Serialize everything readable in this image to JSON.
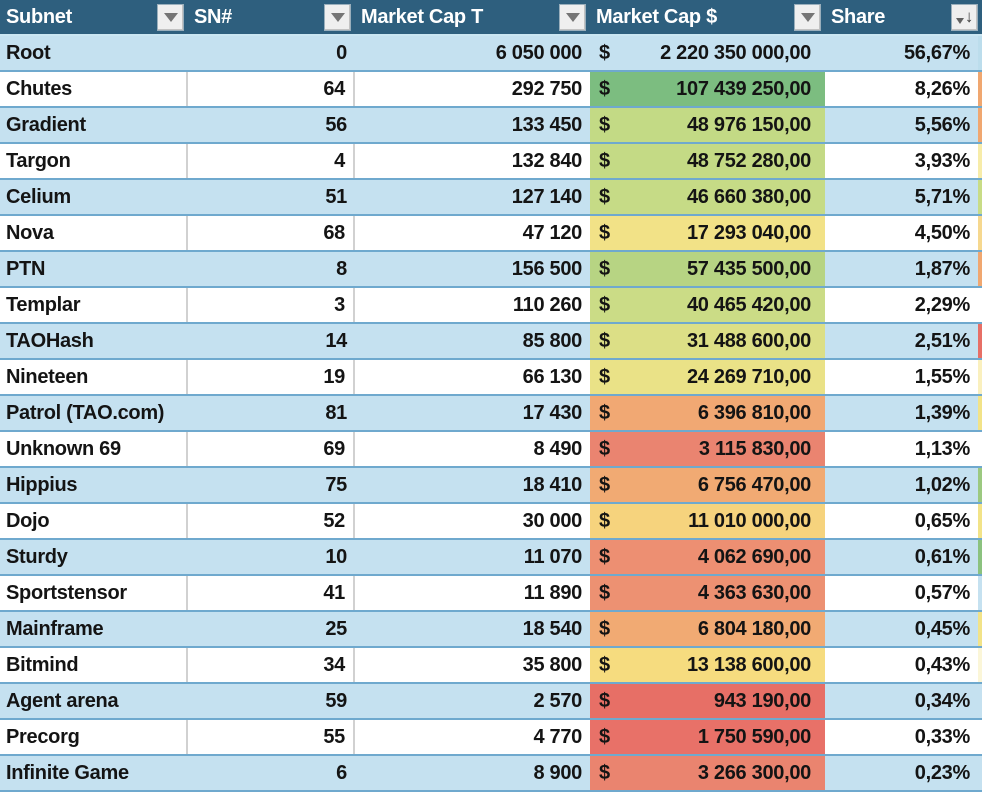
{
  "table": {
    "columns": [
      {
        "label": "Subnet",
        "icon": "filter-dropdown-icon"
      },
      {
        "label": "SN#",
        "icon": "filter-dropdown-icon"
      },
      {
        "label": "Market Cap T",
        "icon": "filter-dropdown-icon"
      },
      {
        "label": "Market Cap $",
        "icon": "filter-dropdown-icon"
      },
      {
        "label": "Share",
        "icon": "sort-desc-filter-icon"
      }
    ],
    "rows": [
      {
        "subnet": "Root",
        "sn": "0",
        "market_cap_t": "6 050 000",
        "currency": "$",
        "market_cap_usd": "2 220 350 000,00",
        "share": "56,67%",
        "usd_cell_color": null,
        "edge_color": "#BCDDEC"
      },
      {
        "subnet": "Chutes",
        "sn": "64",
        "market_cap_t": "292 750",
        "currency": "$",
        "market_cap_usd": "107 439 250,00",
        "share": "8,26%",
        "usd_cell_color": "#7CBD80",
        "edge_color": "#F0A770"
      },
      {
        "subnet": "Gradient",
        "sn": "56",
        "market_cap_t": "133 450",
        "currency": "$",
        "market_cap_usd": "48 976 150,00",
        "share": "5,56%",
        "usd_cell_color": "#C3DA85",
        "edge_color": "#F0A770"
      },
      {
        "subnet": "Targon",
        "sn": "4",
        "market_cap_t": "132 840",
        "currency": "$",
        "market_cap_usd": "48 752 280,00",
        "share": "3,93%",
        "usd_cell_color": "#C4DA85",
        "edge_color": "#F7ECA9"
      },
      {
        "subnet": "Celium",
        "sn": "51",
        "market_cap_t": "127 140",
        "currency": "$",
        "market_cap_usd": "46 660 380,00",
        "share": "5,71%",
        "usd_cell_color": "#C6DB86",
        "edge_color": "#C8DC86"
      },
      {
        "subnet": "Nova",
        "sn": "68",
        "market_cap_t": "47 120",
        "currency": "$",
        "market_cap_usd": "17 293 040,00",
        "share": "4,50%",
        "usd_cell_color": "#F2E287",
        "edge_color": "#F6D88F"
      },
      {
        "subnet": "PTN",
        "sn": "8",
        "market_cap_t": "156 500",
        "currency": "$",
        "market_cap_usd": "57 435 500,00",
        "share": "1,87%",
        "usd_cell_color": "#B7D483",
        "edge_color": "#F0A770"
      },
      {
        "subnet": "Templar",
        "sn": "3",
        "market_cap_t": "110 260",
        "currency": "$",
        "market_cap_usd": "40 465 420,00",
        "share": "2,29%",
        "usd_cell_color": "#CBDC86",
        "edge_color": "#FFFFFF"
      },
      {
        "subnet": "TAOHash",
        "sn": "14",
        "market_cap_t": "85 800",
        "currency": "$",
        "market_cap_usd": "31 488 600,00",
        "share": "2,51%",
        "usd_cell_color": "#DCDF86",
        "edge_color": "#E76F66"
      },
      {
        "subnet": "Nineteen",
        "sn": "19",
        "market_cap_t": "66 130",
        "currency": "$",
        "market_cap_usd": "24 269 710,00",
        "share": "1,55%",
        "usd_cell_color": "#EAE287",
        "edge_color": "#FAF0BE"
      },
      {
        "subnet": "Patrol (TAO.com)",
        "sn": "81",
        "market_cap_t": "17 430",
        "currency": "$",
        "market_cap_usd": "6 396 810,00",
        "share": "1,39%",
        "usd_cell_color": "#F1A873",
        "edge_color": "#F2E388"
      },
      {
        "subnet": "Unknown 69",
        "sn": "69",
        "market_cap_t": "8 490",
        "currency": "$",
        "market_cap_usd": "3 115 830,00",
        "share": "1,13%",
        "usd_cell_color": "#EA8470",
        "edge_color": "#FFFFFF"
      },
      {
        "subnet": "Hippius",
        "sn": "75",
        "market_cap_t": "18 410",
        "currency": "$",
        "market_cap_usd": "6 756 470,00",
        "share": "1,02%",
        "usd_cell_color": "#F1AA73",
        "edge_color": "#9CC980"
      },
      {
        "subnet": "Dojo",
        "sn": "52",
        "market_cap_t": "30 000",
        "currency": "$",
        "market_cap_usd": "11 010 000,00",
        "share": "0,65%",
        "usd_cell_color": "#F6D37D",
        "edge_color": "#F2E388"
      },
      {
        "subnet": "Sturdy",
        "sn": "10",
        "market_cap_t": "11 070",
        "currency": "$",
        "market_cap_usd": "4 062 690,00",
        "share": "0,61%",
        "usd_cell_color": "#ED8F72",
        "edge_color": "#8BC27F"
      },
      {
        "subnet": "Sportstensor",
        "sn": "41",
        "market_cap_t": "11 890",
        "currency": "$",
        "market_cap_usd": "4 363 630,00",
        "share": "0,57%",
        "usd_cell_color": "#ED9172",
        "edge_color": "#C5E1F0"
      },
      {
        "subnet": "Mainframe",
        "sn": "25",
        "market_cap_t": "18 540",
        "currency": "$",
        "market_cap_usd": "6 804 180,00",
        "share": "0,45%",
        "usd_cell_color": "#F1AA73",
        "edge_color": "#F2E388"
      },
      {
        "subnet": "Bitmind",
        "sn": "34",
        "market_cap_t": "35 800",
        "currency": "$",
        "market_cap_usd": "13 138 600,00",
        "share": "0,43%",
        "usd_cell_color": "#F6DC7F",
        "edge_color": "#FBF6D8"
      },
      {
        "subnet": "Agent arena",
        "sn": "59",
        "market_cap_t": "2 570",
        "currency": "$",
        "market_cap_usd": "943 190,00",
        "share": "0,34%",
        "usd_cell_color": "#E76F66",
        "edge_color": "#C5E1F0"
      },
      {
        "subnet": "Precorg",
        "sn": "55",
        "market_cap_t": "4 770",
        "currency": "$",
        "market_cap_usd": "1 750 590,00",
        "share": "0,33%",
        "usd_cell_color": "#E87168",
        "edge_color": "#FFFFFF"
      },
      {
        "subnet": "Infinite Game",
        "sn": "6",
        "market_cap_t": "8 900",
        "currency": "$",
        "market_cap_usd": "3 266 300,00",
        "share": "0,23%",
        "usd_cell_color": "#EA846F",
        "edge_color": "#C5E1F0"
      }
    ]
  },
  "colors": {
    "header_bg": "#2E5F7E",
    "header_text": "#FFFFFF",
    "row_blue": "#C5E1F0",
    "row_white": "#FFFFFF",
    "row_border": "#6FA9CE",
    "column_separator": "#D1D1D1",
    "scale_high": "#7CBD80",
    "scale_mid": "#F2E287",
    "scale_low": "#E76F66"
  }
}
